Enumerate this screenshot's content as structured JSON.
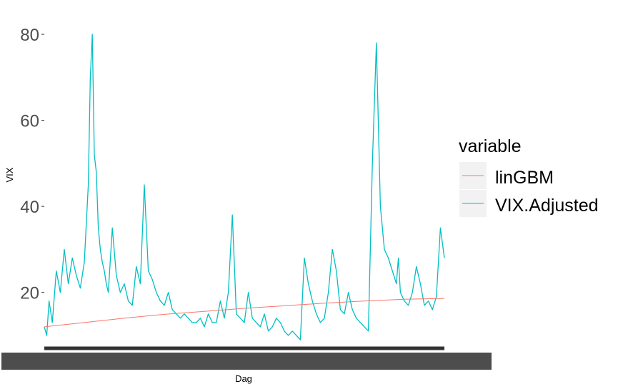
{
  "chart_data": {
    "type": "line",
    "xlabel": "Dag",
    "ylabel": "VIX",
    "ylim": [
      8,
      83
    ],
    "xlim": [
      0,
      1
    ],
    "y_ticks": [
      20,
      40,
      60,
      80
    ],
    "y_tick_labels": [
      "20",
      "40",
      "60",
      "80"
    ],
    "grid": false,
    "legend": {
      "title": "variable",
      "position": "right",
      "entries": [
        {
          "label": "linGBM",
          "color": "#f8766d"
        },
        {
          "label": "VIX.Adjusted",
          "color": "#00bfc4"
        }
      ]
    },
    "series": [
      {
        "name": "linGBM",
        "color": "#f8766d",
        "x": [
          0.0,
          0.1,
          0.2,
          0.3,
          0.4,
          0.5,
          0.6,
          0.7,
          0.8,
          0.9,
          1.0
        ],
        "values": [
          12.0,
          13.0,
          14.0,
          14.9,
          15.6,
          16.3,
          16.9,
          17.5,
          18.0,
          18.4,
          18.6
        ]
      },
      {
        "name": "VIX.Adjusted",
        "color": "#00bfc4",
        "x": [
          0.0,
          0.006,
          0.012,
          0.02,
          0.03,
          0.04,
          0.05,
          0.06,
          0.07,
          0.08,
          0.09,
          0.1,
          0.11,
          0.115,
          0.12,
          0.125,
          0.13,
          0.135,
          0.14,
          0.145,
          0.15,
          0.155,
          0.16,
          0.17,
          0.18,
          0.19,
          0.2,
          0.21,
          0.22,
          0.23,
          0.24,
          0.25,
          0.26,
          0.27,
          0.28,
          0.29,
          0.3,
          0.31,
          0.32,
          0.33,
          0.34,
          0.35,
          0.36,
          0.37,
          0.38,
          0.39,
          0.4,
          0.41,
          0.42,
          0.43,
          0.44,
          0.45,
          0.46,
          0.47,
          0.48,
          0.49,
          0.5,
          0.51,
          0.52,
          0.53,
          0.54,
          0.55,
          0.56,
          0.57,
          0.58,
          0.59,
          0.6,
          0.61,
          0.62,
          0.63,
          0.64,
          0.65,
          0.66,
          0.67,
          0.68,
          0.69,
          0.7,
          0.71,
          0.72,
          0.73,
          0.74,
          0.75,
          0.76,
          0.77,
          0.78,
          0.79,
          0.8,
          0.81,
          0.82,
          0.83,
          0.84,
          0.85,
          0.86,
          0.87,
          0.88,
          0.885,
          0.89,
          0.9,
          0.91,
          0.92,
          0.93,
          0.94,
          0.95,
          0.96,
          0.97,
          0.98,
          0.99,
          1.0
        ],
        "values": [
          12,
          10,
          18,
          13,
          25,
          20,
          30,
          22,
          28,
          24,
          21,
          27,
          45,
          70,
          80,
          52,
          48,
          35,
          30,
          27,
          25,
          22,
          20,
          35,
          24,
          20,
          22,
          18,
          17,
          26,
          22,
          45,
          25,
          23,
          20,
          18,
          17,
          20,
          16,
          15,
          14,
          15,
          14,
          13,
          13,
          14,
          12,
          15,
          13,
          13,
          18,
          14,
          20,
          38,
          15,
          14,
          13,
          20,
          14,
          13,
          12,
          15,
          11,
          12,
          14,
          13,
          11,
          10,
          11,
          10,
          9,
          28,
          22,
          18,
          15,
          13,
          14,
          20,
          30,
          25,
          16,
          15,
          20,
          16,
          14,
          13,
          12,
          11,
          50,
          78,
          40,
          30,
          28,
          25,
          22,
          28,
          20,
          18,
          17,
          20,
          26,
          22,
          17,
          18,
          16,
          19,
          35,
          28
        ]
      }
    ]
  }
}
